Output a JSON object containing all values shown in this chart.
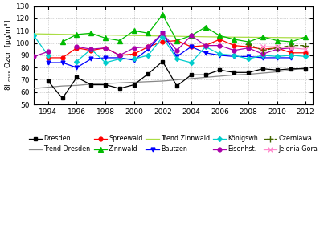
{
  "years": [
    1993,
    1994,
    1995,
    1996,
    1997,
    1998,
    1999,
    2000,
    2001,
    2002,
    2003,
    2004,
    2005,
    2006,
    2007,
    2008,
    2009,
    2010,
    2011,
    2012
  ],
  "Dresden": [
    null,
    69,
    55,
    72,
    66,
    66,
    63,
    66,
    75,
    85,
    65,
    74,
    74,
    78,
    76,
    76,
    79,
    78,
    79,
    79
  ],
  "Trend_Dresden": [
    63,
    64,
    65,
    65.5,
    66.5,
    67,
    67.5,
    68,
    68.5,
    69,
    70,
    71,
    72,
    73,
    74,
    74.5,
    75.5,
    76.5,
    78,
    80
  ],
  "Spreewald": [
    null,
    88,
    88,
    96,
    94,
    96,
    90,
    91,
    97,
    101,
    102,
    97,
    98,
    103,
    98,
    97,
    95,
    96,
    92,
    92
  ],
  "Zinnwald": [
    null,
    null,
    101,
    107,
    108,
    104,
    102,
    110,
    108,
    123,
    102,
    106,
    113,
    106,
    103,
    101,
    105,
    102,
    101,
    105
  ],
  "Trend_Zinnwald": [
    107.5,
    107.3,
    107.1,
    106.9,
    106.7,
    106.5,
    106.3,
    106.1,
    105.9,
    105.7,
    105.5,
    105.3,
    105.1,
    104.9,
    104.8,
    104.7,
    104.6,
    104.5,
    104.4,
    104.3
  ],
  "Bautzen": [
    null,
    84,
    84,
    80,
    87,
    88,
    88,
    86,
    95,
    108,
    89,
    97,
    92,
    90,
    89,
    89,
    88,
    88,
    88,
    null
  ],
  "Konigswh": [
    106,
    90,
    null,
    85,
    95,
    84,
    87,
    87,
    90,
    105,
    87,
    84,
    97,
    91,
    90,
    87,
    90,
    89,
    90,
    89
  ],
  "Eisenhst": [
    89,
    93,
    null,
    97,
    95,
    96,
    90,
    96,
    97,
    108,
    94,
    106,
    98,
    98,
    94,
    96,
    91,
    95,
    96,
    null
  ],
  "Czerniawa": [
    null,
    null,
    null,
    null,
    null,
    null,
    null,
    null,
    null,
    null,
    null,
    null,
    null,
    null,
    null,
    99,
    94,
    96,
    98,
    98
  ],
  "Jelenia_Gora": [
    null,
    null,
    null,
    null,
    null,
    null,
    null,
    null,
    null,
    null,
    null,
    null,
    null,
    null,
    null,
    null,
    97,
    97,
    96,
    95
  ],
  "ylim": [
    50,
    130
  ],
  "xlim": [
    1993,
    2012.5
  ],
  "ylabel": "8h$_{max}$ Ozon [µg/m³]",
  "xticks": [
    1994,
    1996,
    1998,
    2000,
    2002,
    2004,
    2006,
    2008,
    2010,
    2012
  ],
  "yticks": [
    50,
    60,
    70,
    80,
    90,
    100,
    110,
    120,
    130
  ],
  "colors": {
    "Dresden": "#000000",
    "Trend_Dresden": "#888888",
    "Spreewald": "#ff0000",
    "Zinnwald": "#00bb00",
    "Trend_Zinnwald": "#aadd44",
    "Bautzen": "#0000ff",
    "Konigswh": "#00cccc",
    "Eisenhst": "#aa00aa",
    "Czerniawa": "#446600",
    "Jelenia_Gora": "#ff88cc"
  }
}
